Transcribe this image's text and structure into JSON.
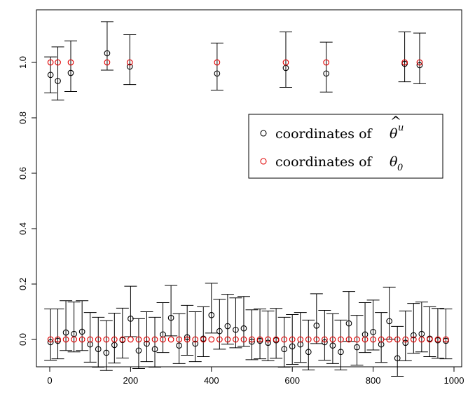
{
  "chart_data": {
    "type": "scatter",
    "title": "",
    "xlabel": "",
    "ylabel": "",
    "xlim": [
      -5,
      1000
    ],
    "ylim": [
      -0.1,
      1.16
    ],
    "x_ticks": [
      0,
      200,
      400,
      600,
      800,
      1000
    ],
    "x_tick_labels": [
      "0",
      "200",
      "400",
      "600",
      "800",
      "1000"
    ],
    "y_ticks": [
      0.0,
      0.2,
      0.4,
      0.6,
      0.8,
      1.0
    ],
    "y_tick_labels": [
      "0.0",
      "0.2",
      "0.4",
      "0.6",
      "0.8",
      "1.0"
    ],
    "grid": false,
    "legend_position": "right",
    "legend": {
      "estimate_prefix": "coordinates of ",
      "estimate_symbol": "θ",
      "estimate_hat": "^",
      "estimate_superscript": "u",
      "true_prefix": "coordinates of ",
      "true_symbol": "θ",
      "true_subscript": "0"
    },
    "colors": {
      "estimate": "#000000",
      "true": "#e00000",
      "errorbar": "#000000"
    },
    "series": [
      {
        "key": "estimate",
        "marker": "open-circle",
        "points": [
          {
            "x": 2,
            "y": 0.955,
            "lo": 0.89,
            "hi": 1.02
          },
          {
            "x": 20,
            "y": 0.933,
            "lo": 0.864,
            "hi": 1.056
          },
          {
            "x": 52,
            "y": 0.962,
            "lo": 0.895,
            "hi": 1.078
          },
          {
            "x": 142,
            "y": 1.033,
            "lo": 0.972,
            "hi": 1.147
          },
          {
            "x": 198,
            "y": 0.985,
            "lo": 0.92,
            "hi": 1.1
          },
          {
            "x": 414,
            "y": 0.96,
            "lo": 0.9,
            "hi": 1.07
          },
          {
            "x": 584,
            "y": 0.98,
            "lo": 0.91,
            "hi": 1.11
          },
          {
            "x": 684,
            "y": 0.96,
            "lo": 0.893,
            "hi": 1.073
          },
          {
            "x": 878,
            "y": 0.995,
            "lo": 0.93,
            "hi": 1.11
          },
          {
            "x": 915,
            "y": 0.99,
            "lo": 0.923,
            "hi": 1.106
          },
          {
            "x": 2,
            "y": -0.01,
            "lo": -0.075,
            "hi": 0.11
          },
          {
            "x": 20,
            "y": -0.005,
            "lo": -0.07,
            "hi": 0.11
          },
          {
            "x": 40,
            "y": 0.025,
            "lo": -0.04,
            "hi": 0.14
          },
          {
            "x": 60,
            "y": 0.02,
            "lo": -0.045,
            "hi": 0.135
          },
          {
            "x": 80,
            "y": 0.028,
            "lo": -0.04,
            "hi": 0.14
          },
          {
            "x": 100,
            "y": -0.018,
            "lo": -0.082,
            "hi": 0.097
          },
          {
            "x": 120,
            "y": -0.035,
            "lo": -0.1,
            "hi": 0.08
          },
          {
            "x": 140,
            "y": -0.048,
            "lo": -0.112,
            "hi": 0.068
          },
          {
            "x": 160,
            "y": -0.02,
            "lo": -0.085,
            "hi": 0.095
          },
          {
            "x": 180,
            "y": -0.002,
            "lo": -0.067,
            "hi": 0.113
          },
          {
            "x": 200,
            "y": 0.075,
            "lo": 0.01,
            "hi": 0.192
          },
          {
            "x": 220,
            "y": -0.04,
            "lo": -0.105,
            "hi": 0.075
          },
          {
            "x": 240,
            "y": -0.015,
            "lo": -0.08,
            "hi": 0.1
          },
          {
            "x": 260,
            "y": -0.035,
            "lo": -0.1,
            "hi": 0.08
          },
          {
            "x": 280,
            "y": 0.018,
            "lo": -0.047,
            "hi": 0.133
          },
          {
            "x": 300,
            "y": 0.078,
            "lo": 0.013,
            "hi": 0.195
          },
          {
            "x": 320,
            "y": -0.022,
            "lo": -0.087,
            "hi": 0.093
          },
          {
            "x": 340,
            "y": 0.008,
            "lo": -0.057,
            "hi": 0.123
          },
          {
            "x": 360,
            "y": -0.015,
            "lo": -0.08,
            "hi": 0.1
          },
          {
            "x": 380,
            "y": 0.003,
            "lo": -0.062,
            "hi": 0.118
          },
          {
            "x": 400,
            "y": 0.088,
            "lo": 0.023,
            "hi": 0.203
          },
          {
            "x": 420,
            "y": 0.03,
            "lo": -0.035,
            "hi": 0.145
          },
          {
            "x": 440,
            "y": 0.048,
            "lo": -0.017,
            "hi": 0.163
          },
          {
            "x": 460,
            "y": 0.035,
            "lo": -0.03,
            "hi": 0.15
          },
          {
            "x": 480,
            "y": 0.04,
            "lo": -0.025,
            "hi": 0.155
          },
          {
            "x": 500,
            "y": -0.008,
            "lo": -0.073,
            "hi": 0.107
          },
          {
            "x": 520,
            "y": -0.005,
            "lo": -0.07,
            "hi": 0.11
          },
          {
            "x": 540,
            "y": -0.012,
            "lo": -0.077,
            "hi": 0.103
          },
          {
            "x": 560,
            "y": -0.003,
            "lo": -0.068,
            "hi": 0.112
          },
          {
            "x": 580,
            "y": -0.035,
            "lo": -0.1,
            "hi": 0.08
          },
          {
            "x": 600,
            "y": -0.025,
            "lo": -0.09,
            "hi": 0.09
          },
          {
            "x": 620,
            "y": -0.018,
            "lo": -0.083,
            "hi": 0.097
          },
          {
            "x": 640,
            "y": -0.045,
            "lo": -0.11,
            "hi": 0.07
          },
          {
            "x": 660,
            "y": 0.05,
            "lo": -0.015,
            "hi": 0.165
          },
          {
            "x": 680,
            "y": -0.01,
            "lo": -0.075,
            "hi": 0.105
          },
          {
            "x": 700,
            "y": -0.022,
            "lo": -0.087,
            "hi": 0.093
          },
          {
            "x": 720,
            "y": -0.045,
            "lo": -0.11,
            "hi": 0.07
          },
          {
            "x": 740,
            "y": 0.058,
            "lo": -0.007,
            "hi": 0.173
          },
          {
            "x": 760,
            "y": -0.028,
            "lo": -0.093,
            "hi": 0.087
          },
          {
            "x": 780,
            "y": 0.018,
            "lo": -0.047,
            "hi": 0.133
          },
          {
            "x": 800,
            "y": 0.027,
            "lo": -0.038,
            "hi": 0.142
          },
          {
            "x": 820,
            "y": -0.018,
            "lo": -0.083,
            "hi": 0.097
          },
          {
            "x": 840,
            "y": 0.066,
            "lo": 0.001,
            "hi": 0.189
          },
          {
            "x": 860,
            "y": -0.068,
            "lo": -0.133,
            "hi": 0.047
          },
          {
            "x": 880,
            "y": -0.012,
            "lo": -0.077,
            "hi": 0.103
          },
          {
            "x": 900,
            "y": 0.015,
            "lo": -0.05,
            "hi": 0.13
          },
          {
            "x": 920,
            "y": 0.02,
            "lo": -0.045,
            "hi": 0.135
          },
          {
            "x": 940,
            "y": 0.003,
            "lo": -0.062,
            "hi": 0.118
          },
          {
            "x": 960,
            "y": -0.003,
            "lo": -0.068,
            "hi": 0.112
          },
          {
            "x": 980,
            "y": -0.005,
            "lo": -0.07,
            "hi": 0.11
          }
        ]
      },
      {
        "key": "true",
        "marker": "open-circle",
        "points": [
          {
            "x": 2,
            "y": 1
          },
          {
            "x": 20,
            "y": 1
          },
          {
            "x": 52,
            "y": 1
          },
          {
            "x": 142,
            "y": 1
          },
          {
            "x": 198,
            "y": 1
          },
          {
            "x": 414,
            "y": 1
          },
          {
            "x": 584,
            "y": 1
          },
          {
            "x": 684,
            "y": 1
          },
          {
            "x": 878,
            "y": 1
          },
          {
            "x": 915,
            "y": 1
          },
          {
            "x": 2,
            "y": 0
          },
          {
            "x": 20,
            "y": 0
          },
          {
            "x": 40,
            "y": 0
          },
          {
            "x": 60,
            "y": 0
          },
          {
            "x": 80,
            "y": 0
          },
          {
            "x": 100,
            "y": 0
          },
          {
            "x": 120,
            "y": 0
          },
          {
            "x": 140,
            "y": 0
          },
          {
            "x": 160,
            "y": 0
          },
          {
            "x": 180,
            "y": 0
          },
          {
            "x": 200,
            "y": 0
          },
          {
            "x": 220,
            "y": 0
          },
          {
            "x": 240,
            "y": 0
          },
          {
            "x": 260,
            "y": 0
          },
          {
            "x": 280,
            "y": 0
          },
          {
            "x": 300,
            "y": 0
          },
          {
            "x": 320,
            "y": 0
          },
          {
            "x": 340,
            "y": 0
          },
          {
            "x": 360,
            "y": 0
          },
          {
            "x": 380,
            "y": 0
          },
          {
            "x": 400,
            "y": 0
          },
          {
            "x": 420,
            "y": 0
          },
          {
            "x": 440,
            "y": 0
          },
          {
            "x": 460,
            "y": 0
          },
          {
            "x": 480,
            "y": 0
          },
          {
            "x": 500,
            "y": 0
          },
          {
            "x": 520,
            "y": 0
          },
          {
            "x": 540,
            "y": 0
          },
          {
            "x": 560,
            "y": 0
          },
          {
            "x": 580,
            "y": 0
          },
          {
            "x": 600,
            "y": 0
          },
          {
            "x": 620,
            "y": 0
          },
          {
            "x": 640,
            "y": 0
          },
          {
            "x": 660,
            "y": 0
          },
          {
            "x": 680,
            "y": 0
          },
          {
            "x": 700,
            "y": 0
          },
          {
            "x": 720,
            "y": 0
          },
          {
            "x": 740,
            "y": 0
          },
          {
            "x": 760,
            "y": 0
          },
          {
            "x": 780,
            "y": 0
          },
          {
            "x": 800,
            "y": 0
          },
          {
            "x": 820,
            "y": 0
          },
          {
            "x": 840,
            "y": 0
          },
          {
            "x": 860,
            "y": 0
          },
          {
            "x": 880,
            "y": 0
          },
          {
            "x": 900,
            "y": 0
          },
          {
            "x": 920,
            "y": 0
          },
          {
            "x": 940,
            "y": 0
          },
          {
            "x": 960,
            "y": 0
          },
          {
            "x": 980,
            "y": 0
          }
        ]
      }
    ]
  }
}
